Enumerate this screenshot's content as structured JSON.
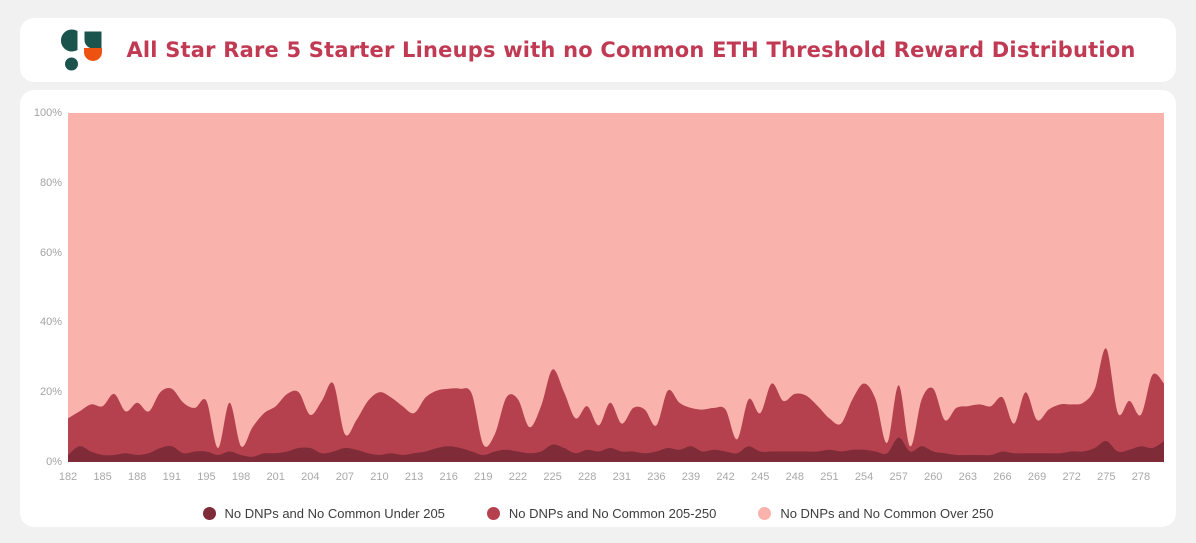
{
  "header": {
    "title": "All Star Rare 5 Starter Lineups with no Common ETH Threshold Reward Distribution",
    "title_color": "#c03a54",
    "logo": {
      "name": "sorare-data-logo",
      "teal": "#1a544c",
      "orange": "#ee5211"
    }
  },
  "chart_data": {
    "type": "area",
    "stacked": true,
    "percentage": true,
    "grid": false,
    "legend_position": "bottom",
    "ylim": [
      0,
      100
    ],
    "y_ticks": [
      "0%",
      "20%",
      "40%",
      "60%",
      "80%",
      "100%"
    ],
    "x_tick_labels": [
      "182",
      "185",
      "188",
      "191",
      "195",
      "198",
      "201",
      "204",
      "207",
      "210",
      "213",
      "216",
      "219",
      "222",
      "225",
      "228",
      "231",
      "236",
      "239",
      "242",
      "245",
      "248",
      "251",
      "254",
      "257",
      "260",
      "263",
      "266",
      "269",
      "272",
      "275",
      "278"
    ],
    "x_ticks_every_n_points": 3,
    "axis_label_color": "#a6a6a6",
    "series": [
      {
        "name": "No DNPs and No Common Under 205",
        "color": "#802b38",
        "values": [
          2,
          4.5,
          3,
          2,
          2,
          2.5,
          2,
          2.5,
          4,
          4.5,
          2.5,
          3,
          3,
          2,
          3,
          2,
          1.5,
          2.5,
          2.5,
          3,
          4,
          4,
          2.5,
          3,
          4,
          3.5,
          2.5,
          2,
          2.5,
          2,
          2.5,
          3,
          4,
          4.5,
          4,
          3,
          2,
          3,
          3.5,
          3,
          2.5,
          3,
          5,
          4,
          2.5,
          3.5,
          3,
          4,
          3,
          3,
          2.5,
          3,
          4,
          3.5,
          4.5,
          3,
          3.5,
          3,
          2.5,
          4.5,
          3,
          3,
          3,
          3,
          3,
          3,
          3.5,
          3,
          3.5,
          3.5,
          3,
          2.5,
          7,
          3,
          4.5,
          3,
          2.5,
          2,
          2,
          2,
          2,
          3,
          2.5,
          2.5,
          2.5,
          2.5,
          2.5,
          3,
          3,
          4,
          6,
          3,
          3.5,
          4.5,
          4,
          6
        ]
      },
      {
        "name": "No DNPs and No Common 205-250",
        "color": "#b5414f",
        "values": [
          10.5,
          10,
          13.5,
          14,
          17.5,
          12,
          15,
          12,
          16,
          16.5,
          14.5,
          12.5,
          14.5,
          2,
          14,
          2.5,
          8.5,
          11.5,
          13.5,
          16.5,
          16,
          9.5,
          15,
          19.5,
          4,
          8.5,
          15,
          18,
          16,
          14,
          11.5,
          15.5,
          16.5,
          16.5,
          17,
          16.5,
          3,
          5,
          15,
          15,
          7.5,
          13,
          21.5,
          16,
          10,
          12.5,
          7.5,
          13,
          8,
          12.5,
          12.5,
          7.5,
          16.5,
          13.5,
          11,
          12,
          12,
          12,
          4,
          13.5,
          11,
          19.5,
          14.5,
          16.5,
          16,
          13,
          9,
          8,
          14.5,
          19,
          15,
          3,
          15,
          1.5,
          13.5,
          18,
          9.5,
          13.5,
          14,
          14.5,
          14,
          15.5,
          8.5,
          17.5,
          9.5,
          12.5,
          14,
          13.5,
          14,
          17,
          26.5,
          11,
          14,
          9,
          21,
          16.5
        ]
      },
      {
        "name": "No DNPs and No Common Over 250",
        "color": "#f9b3ac",
        "values": [
          87.5,
          85.5,
          83.5,
          84,
          80.5,
          85.5,
          83,
          85.5,
          80,
          79,
          83,
          84.5,
          82.5,
          96,
          83,
          95.5,
          90,
          86,
          84,
          80.5,
          80,
          86.5,
          82.5,
          77.5,
          92,
          88,
          82.5,
          80,
          81.5,
          84,
          86,
          81.5,
          79.5,
          79,
          79,
          80.5,
          95,
          92,
          81.5,
          82,
          90,
          84,
          73.5,
          80,
          87.5,
          84,
          89.5,
          83,
          89,
          84.5,
          85,
          89.5,
          79.5,
          83,
          84.5,
          85,
          84.5,
          85,
          93.5,
          82,
          86,
          77.5,
          82.5,
          80.5,
          81,
          84,
          87.5,
          89,
          82,
          77.5,
          82,
          94.5,
          78,
          95.5,
          82,
          79,
          88,
          84.5,
          84,
          83.5,
          84,
          81.5,
          89,
          80,
          88,
          85,
          83.5,
          83.5,
          83,
          79,
          67.5,
          86,
          82.5,
          86.5,
          75,
          77.5
        ]
      }
    ]
  }
}
